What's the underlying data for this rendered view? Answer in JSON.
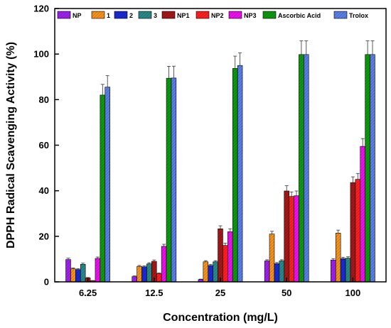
{
  "chart_data": {
    "type": "bar",
    "xlabel": "Concentration (mg/L)",
    "ylabel": "DPPH Radical Scavenging Activity (%)",
    "ylim": [
      0,
      120
    ],
    "yticks": [
      "0",
      "20",
      "40",
      "60",
      "80",
      "100",
      "120"
    ],
    "categories": [
      "6.25",
      "12.5",
      "25",
      "50",
      "100"
    ],
    "legend_position": "top",
    "grid": false,
    "series": [
      {
        "name": "NP",
        "color": "#a020f0",
        "values": [
          9.8,
          2.3,
          1.0,
          9.2,
          9.6
        ],
        "errors": [
          0.6,
          0.3,
          0.2,
          0.5,
          0.6
        ]
      },
      {
        "name": "1",
        "color": "#f7931e",
        "values": [
          5.7,
          6.8,
          8.8,
          21.0,
          21.4
        ],
        "errors": [
          0.4,
          0.4,
          0.5,
          1.2,
          1.3
        ]
      },
      {
        "name": "2",
        "color": "#1a2bd6",
        "values": [
          5.4,
          6.6,
          7.2,
          8.0,
          10.2
        ],
        "errors": [
          0.4,
          0.4,
          0.5,
          0.5,
          0.6
        ]
      },
      {
        "name": "3",
        "color": "#2a8a8a",
        "values": [
          7.7,
          7.9,
          8.8,
          9.2,
          10.4
        ],
        "errors": [
          0.5,
          0.5,
          0.5,
          0.5,
          0.6
        ]
      },
      {
        "name": "NP1",
        "color": "#a51818",
        "values": [
          1.7,
          9.0,
          23.3,
          39.9,
          43.6
        ],
        "errors": [
          0.2,
          0.6,
          1.3,
          2.3,
          2.5
        ]
      },
      {
        "name": "NP2",
        "color": "#ff2020",
        "values": [
          0.5,
          3.6,
          16.0,
          37.5,
          45.0
        ],
        "errors": [
          0.1,
          0.3,
          1.0,
          2.0,
          2.6
        ]
      },
      {
        "name": "NP3",
        "color": "#ee10ee",
        "values": [
          10.3,
          15.6,
          22.0,
          37.8,
          59.5
        ],
        "errors": [
          0.6,
          0.9,
          1.3,
          2.1,
          3.4
        ]
      },
      {
        "name": "Ascorbic Acid",
        "color": "#0e9a0e",
        "values": [
          82.0,
          89.4,
          93.7,
          99.8,
          99.8
        ],
        "errors": [
          4.7,
          5.2,
          5.4,
          6.0,
          6.0
        ]
      },
      {
        "name": "Trolox",
        "color": "#5a7fe6",
        "values": [
          85.5,
          89.5,
          95.0,
          99.8,
          99.8
        ],
        "errors": [
          5.0,
          5.2,
          5.5,
          6.0,
          6.0
        ]
      }
    ]
  }
}
